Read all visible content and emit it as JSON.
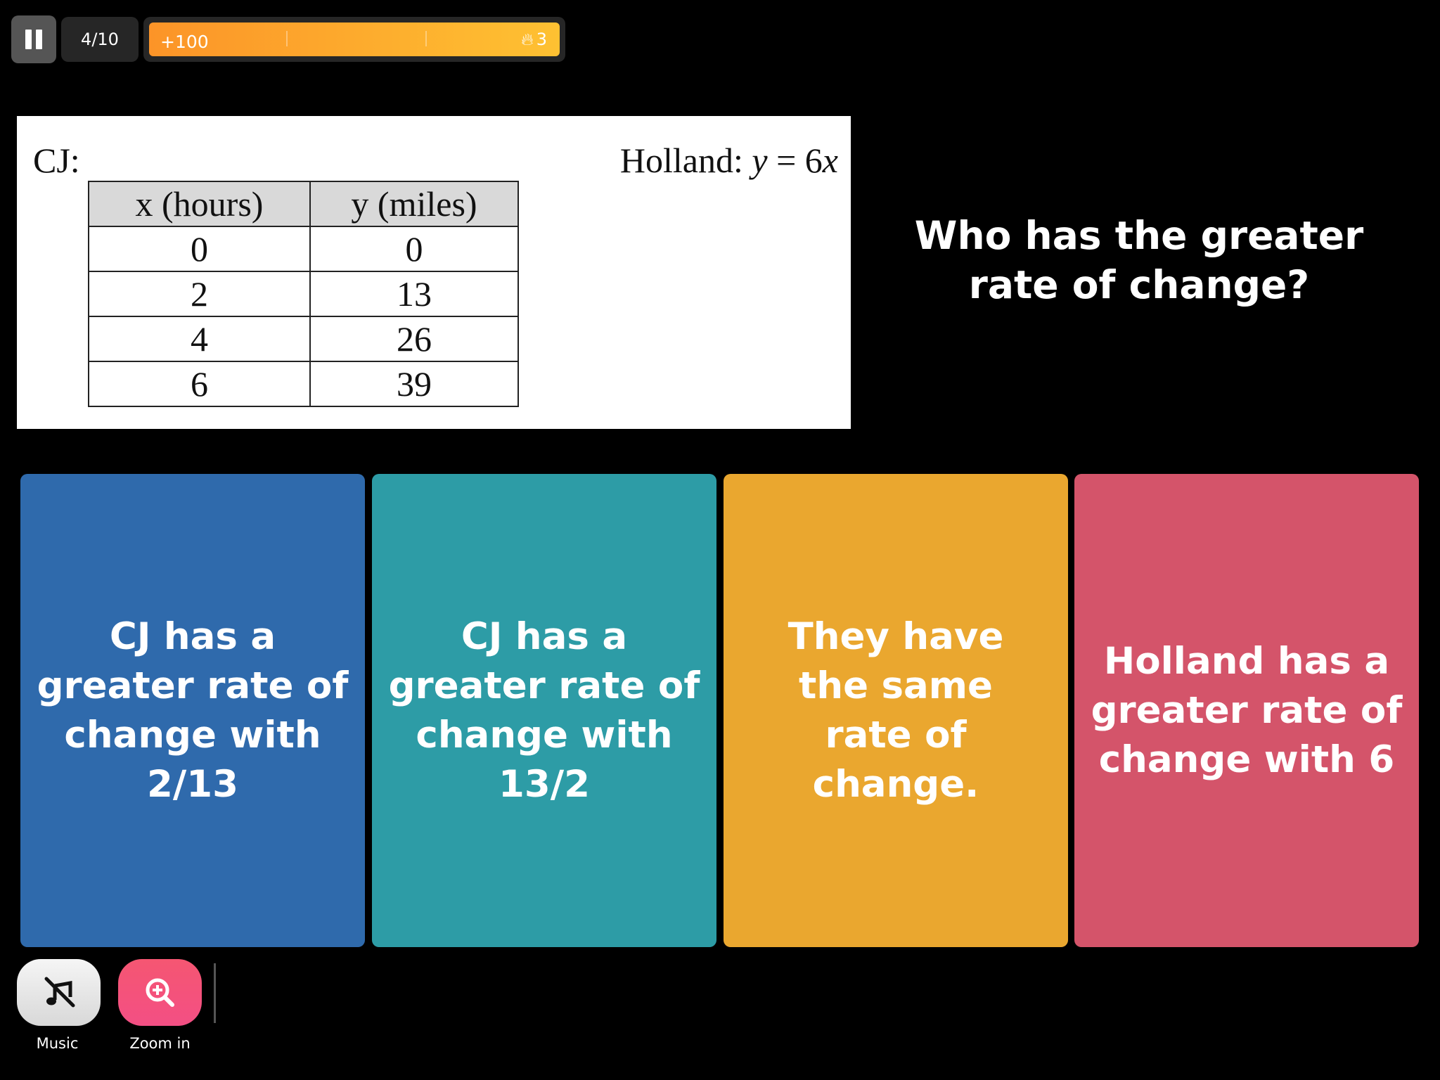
{
  "header": {
    "progress": "4/10",
    "points": "+100",
    "streak": "3",
    "progress_fraction": 0.4
  },
  "figure": {
    "cj_label": "CJ:",
    "holland_label": "Holland: ",
    "holland_eq_y": "y",
    "holland_eq_rest": " = 6",
    "holland_eq_x": "x",
    "table": {
      "headers": [
        "x (hours)",
        "y (miles)"
      ],
      "rows": [
        [
          "0",
          "0"
        ],
        [
          "2",
          "13"
        ],
        [
          "4",
          "26"
        ],
        [
          "6",
          "39"
        ]
      ]
    }
  },
  "question": "Who has the greater rate of change?",
  "answers": [
    {
      "text": "CJ has a greater rate of change with 2/13",
      "color": "#2f6aac"
    },
    {
      "text": "CJ has a greater rate of change with 13/2",
      "color": "#2d9ca6"
    },
    {
      "text": "They have the same rate of change.",
      "color": "#eaa72f"
    },
    {
      "text": "Holland has a greater rate of change with 6",
      "color": "#d4546a"
    }
  ],
  "tools": {
    "music_label": "Music",
    "zoom_label": "Zoom in"
  }
}
